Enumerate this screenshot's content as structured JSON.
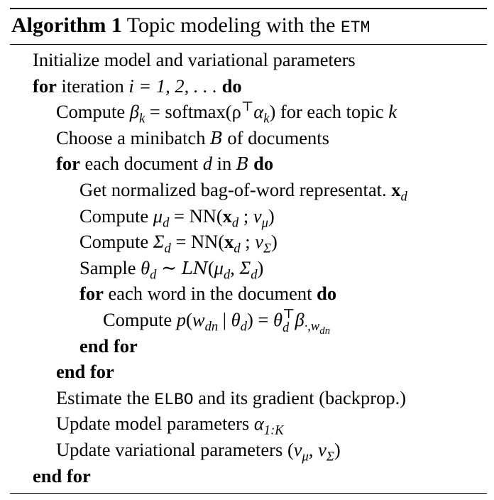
{
  "caption": {
    "label": "Algorithm 1",
    "title_prefix": "Topic modeling with the ",
    "title_acronym": "ETM"
  },
  "keywords": {
    "for": "for",
    "do": "do",
    "end_for": "end for"
  },
  "lines": {
    "init": "Initialize model and variational parameters",
    "iter_text": "iteration",
    "iter_math": "i = 1, 2, . . .",
    "compute_beta_prefix": "Compute",
    "compute_beta_math": "β",
    "compute_beta_sub": "k",
    "compute_beta_eq": " = softmax(ρ",
    "compute_beta_sup": "⊤",
    "compute_beta_alpha": "α",
    "compute_beta_alpha_sub": "k",
    "compute_beta_close": ")",
    "compute_beta_suffix": " for each topic ",
    "compute_beta_k": "k",
    "minibatch_prefix": "Choose a minibatch ",
    "minibatch_B": "B",
    "minibatch_suffix": " of documents",
    "each_doc_text": "each document",
    "each_doc_d": "d",
    "each_doc_in": " in ",
    "each_doc_B": "B",
    "bow_text": "Get normalized bag-of-word representat. ",
    "bow_x": "x",
    "bow_sub": "d",
    "mu_prefix": "Compute ",
    "mu_sym": "μ",
    "mu_sub": "d",
    "mu_eq": " = NN(",
    "mu_x": "x",
    "mu_x_sub": "d",
    "mu_semi": " ; ",
    "mu_nu": "ν",
    "mu_nu_sub": "μ",
    "mu_close": ")",
    "sigma_prefix": "Compute ",
    "sigma_sym": "Σ",
    "sigma_sub": "d",
    "sigma_eq": " = NN(",
    "sigma_x": "x",
    "sigma_x_sub": "d",
    "sigma_semi": " ; ",
    "sigma_nu": "ν",
    "sigma_nu_sub": "Σ",
    "sigma_close": ")",
    "sample_prefix": "Sample ",
    "sample_theta": "θ",
    "sample_theta_sub": "d",
    "sample_sim": " ∼ ",
    "sample_LN": "LN",
    "sample_args_open": "(",
    "sample_mu": "μ",
    "sample_mu_sub": "d",
    "sample_comma": ", ",
    "sample_sigma": "Σ",
    "sample_sigma_sub": "d",
    "sample_close": ")",
    "each_word_text": "each word in the document",
    "word_prefix": "Compute ",
    "word_p": "p",
    "word_open": "(",
    "word_w": "w",
    "word_w_sub": "dn",
    "word_bar": " | ",
    "word_theta": "θ",
    "word_theta_sub": "d",
    "word_eq": ") = ",
    "word_theta2": "θ",
    "word_theta2_sup": "⊤",
    "word_theta2_sub": "d",
    "word_beta": "β",
    "word_beta_sub": "·,w",
    "word_beta_subsub": "dn",
    "elbo_prefix": "Estimate the ",
    "elbo_acronym": "ELBO",
    "elbo_suffix": " and its gradient (backprop.)",
    "update_model_prefix": "Update model parameters ",
    "update_model_alpha": "α",
    "update_model_sub": "1:K",
    "update_var_prefix": "Update variational parameters (",
    "update_var_nu1": "ν",
    "update_var_nu1_sub": "μ",
    "update_var_comma": ", ",
    "update_var_nu2": "ν",
    "update_var_nu2_sub": "Σ",
    "update_var_close": ")"
  }
}
